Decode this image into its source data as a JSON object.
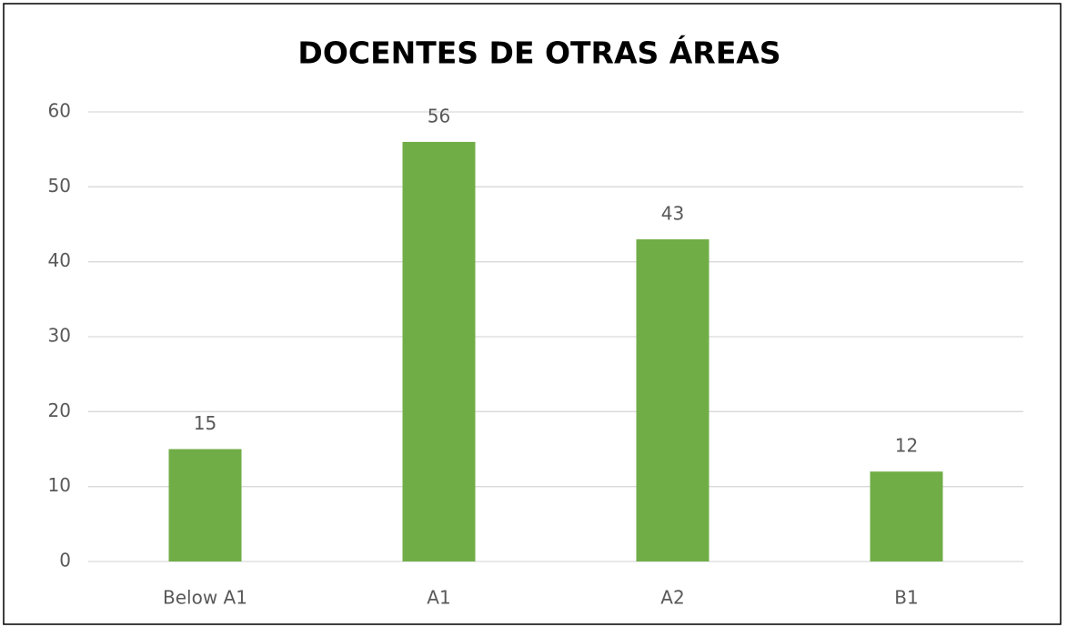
{
  "chart_data": {
    "type": "bar",
    "title": "DOCENTES DE OTRAS ÁREAS",
    "categories": [
      "Below A1",
      "A1",
      "A2",
      "B1"
    ],
    "values": [
      15,
      56,
      43,
      12
    ],
    "color": "#70ad47",
    "ylim": [
      0,
      60
    ],
    "yticks": [
      0,
      10,
      20,
      30,
      40,
      50,
      60
    ],
    "grid": true
  }
}
